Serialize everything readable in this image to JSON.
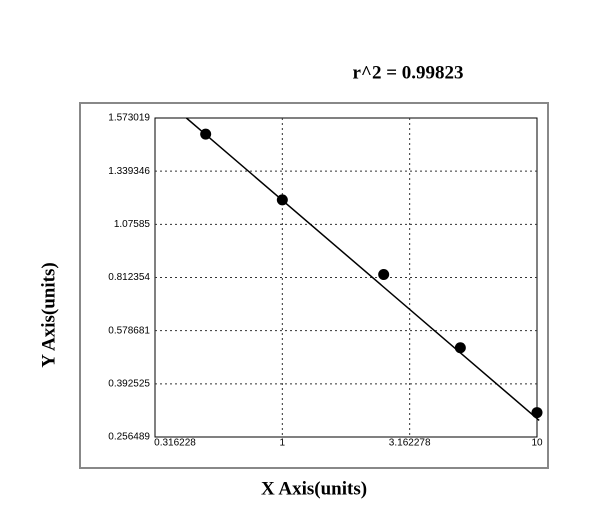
{
  "chart_data": {
    "type": "scatter",
    "title": "r^2 = 0.99823",
    "x_label": "X Axis(units)",
    "y_label": "Y Axis(units)",
    "x_scale": "log",
    "grid": true,
    "color": "#000000",
    "xlim": [
      0.316228,
      10
    ],
    "xticks": [
      0.316228,
      1,
      3.162278,
      10
    ],
    "ylim": [
      0.256489,
      1.573019
    ],
    "yticks": [
      0.256489,
      0.392525,
      0.578681,
      0.812354,
      1.07585,
      1.339346,
      1.573019
    ],
    "x": [
      0.5,
      1,
      2.5,
      5,
      10
    ],
    "values": [
      1.502,
      1.197,
      0.827,
      0.519,
      0.319
    ],
    "fit_line": {
      "x": [
        0.42,
        10.2
      ],
      "y": [
        1.573,
        0.299
      ]
    }
  }
}
